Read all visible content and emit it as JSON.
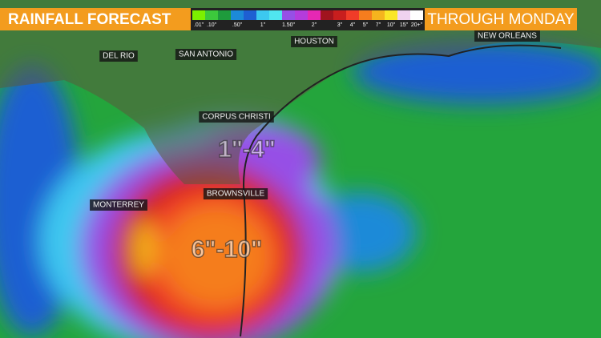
{
  "header": {
    "title": "RAINFALL FORECAST",
    "subtitle": "THROUGH MONDAY"
  },
  "legend": [
    {
      "color": "#7cf000",
      "label": ".01\""
    },
    {
      "color": "#3cc83c",
      "label": ".10\""
    },
    {
      "color": "#1e9b3c"
    },
    {
      "color": "#1c8ad8",
      "label": ".50\""
    },
    {
      "color": "#1e5fd2"
    },
    {
      "color": "#3cc8f0",
      "label": "1\""
    },
    {
      "color": "#50e6f0"
    },
    {
      "color": "#9650e6",
      "label": "1.50\""
    },
    {
      "color": "#b43cdc"
    },
    {
      "color": "#e628b4",
      "label": "2\""
    },
    {
      "color": "#a0141e"
    },
    {
      "color": "#c81e1e",
      "label": "3\""
    },
    {
      "color": "#f03c28",
      "label": "4\""
    },
    {
      "color": "#f57d1e",
      "label": "5\""
    },
    {
      "color": "#f5b41e",
      "label": "7\""
    },
    {
      "color": "#fae628",
      "label": "10\""
    },
    {
      "color": "#f0d2f0",
      "label": "15\""
    },
    {
      "color": "#ffffff",
      "label": "20+\""
    }
  ],
  "cities": [
    "HOUSTON",
    "NEW ORLEANS",
    "SAN ANTONIO",
    "DEL RIO",
    "CORPUS CHRISTI",
    "BROWNSVILLE",
    "MONTERREY"
  ],
  "amounts": [
    "1\"-4\"",
    "6\"-10\""
  ]
}
